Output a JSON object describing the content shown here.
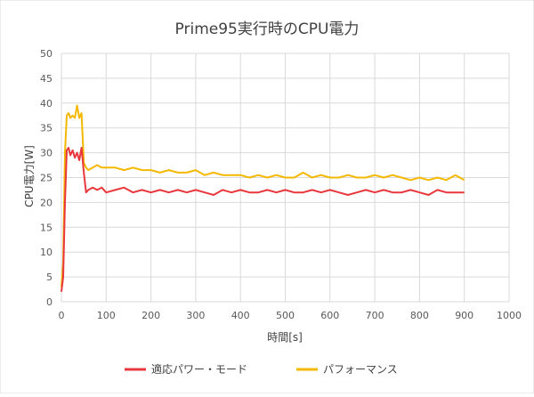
{
  "chart_data": {
    "type": "line",
    "title": "Prime95実行時のCPU電力",
    "xlabel": "時間[s]",
    "ylabel": "CPU電力[W]",
    "xlim": [
      0,
      1000
    ],
    "ylim": [
      0,
      50
    ],
    "xticks": [
      0,
      100,
      200,
      300,
      400,
      500,
      600,
      700,
      800,
      900,
      1000
    ],
    "yticks": [
      0,
      5,
      10,
      15,
      20,
      25,
      30,
      35,
      40,
      45,
      50
    ],
    "grid": true,
    "legend_position": "bottom",
    "series": [
      {
        "name": "適応パワー・モード",
        "color": "#e8383d",
        "x": [
          0,
          4,
          8,
          12,
          16,
          20,
          25,
          30,
          35,
          40,
          45,
          50,
          55,
          60,
          70,
          80,
          90,
          100,
          120,
          140,
          160,
          180,
          200,
          220,
          240,
          260,
          280,
          300,
          320,
          340,
          360,
          380,
          400,
          420,
          440,
          460,
          480,
          500,
          520,
          540,
          560,
          580,
          600,
          620,
          640,
          660,
          680,
          700,
          720,
          740,
          760,
          780,
          800,
          820,
          840,
          860,
          880,
          900
        ],
        "y": [
          2,
          5,
          20,
          30.5,
          31,
          29.5,
          30.5,
          29,
          30,
          28.5,
          31,
          26,
          22,
          22.5,
          23,
          22.5,
          23,
          22,
          22.5,
          23,
          22,
          22.5,
          22,
          22.5,
          22,
          22.5,
          22,
          22.5,
          22,
          21.5,
          22.5,
          22,
          22.5,
          22,
          22,
          22.5,
          22,
          22.5,
          22,
          22,
          22.5,
          22,
          22.5,
          22,
          21.5,
          22,
          22.5,
          22,
          22.5,
          22,
          22,
          22.5,
          22,
          21.5,
          22.5,
          22,
          22,
          22
        ]
      },
      {
        "name": "パフォーマンス",
        "color": "#f5b800",
        "x": [
          0,
          4,
          8,
          12,
          16,
          20,
          25,
          30,
          35,
          40,
          45,
          50,
          55,
          60,
          70,
          80,
          90,
          100,
          120,
          140,
          160,
          180,
          200,
          220,
          240,
          260,
          280,
          300,
          320,
          340,
          360,
          380,
          400,
          420,
          440,
          460,
          480,
          500,
          520,
          540,
          560,
          580,
          600,
          620,
          640,
          660,
          680,
          700,
          720,
          740,
          760,
          780,
          800,
          820,
          840,
          860,
          880,
          900
        ],
        "y": [
          3,
          8,
          30,
          37.5,
          38,
          37,
          37.5,
          37,
          39.5,
          37,
          38,
          28,
          27,
          26.5,
          27,
          27.5,
          27,
          27,
          27,
          26.5,
          27,
          26.5,
          26.5,
          26,
          26.5,
          26,
          26,
          26.5,
          25.5,
          26,
          25.5,
          25.5,
          25.5,
          25,
          25.5,
          25,
          25.5,
          25,
          25,
          26,
          25,
          25.5,
          25,
          25,
          25.5,
          25,
          25,
          25.5,
          25,
          25.5,
          25,
          24.5,
          25,
          24.5,
          25,
          24.5,
          25.5,
          24.5
        ]
      }
    ]
  }
}
